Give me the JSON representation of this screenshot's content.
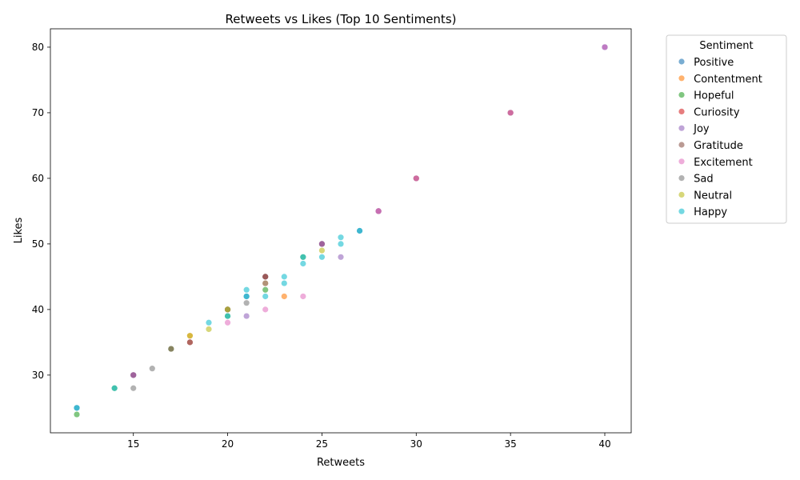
{
  "chart_data": {
    "type": "scatter",
    "title": "Retweets vs Likes (Top 10 Sentiments)",
    "xlabel": "Retweets",
    "ylabel": "Likes",
    "xlim": [
      10.6,
      41.4
    ],
    "ylim": [
      21.2,
      82.8
    ],
    "xticks": [
      15,
      20,
      25,
      30,
      35,
      40
    ],
    "yticks": [
      30,
      40,
      50,
      60,
      70,
      80
    ],
    "grid": false,
    "legend": {
      "title": "Sentiment",
      "placement": "outside-right"
    },
    "series": [
      {
        "name": " Positive ",
        "color": "#1f77b4",
        "points": [
          [
            12,
            25
          ],
          [
            15,
            30
          ],
          [
            20,
            40
          ],
          [
            21,
            42
          ],
          [
            22,
            45
          ],
          [
            25,
            50
          ],
          [
            27,
            52
          ],
          [
            28,
            55
          ],
          [
            30,
            60
          ],
          [
            35,
            70
          ],
          [
            40,
            80
          ]
        ]
      },
      {
        "name": " Contentment ",
        "color": "#ff7f0e",
        "points": [
          [
            18,
            36
          ],
          [
            20,
            40
          ],
          [
            22,
            44
          ],
          [
            23,
            42
          ]
        ]
      },
      {
        "name": " Hopeful ",
        "color": "#2ca02c",
        "points": [
          [
            12,
            24
          ],
          [
            14,
            28
          ],
          [
            17,
            34
          ],
          [
            20,
            39
          ],
          [
            22,
            43
          ],
          [
            24,
            48
          ]
        ]
      },
      {
        "name": " Curiosity ",
        "color": "#d62728",
        "points": [
          [
            15,
            30
          ],
          [
            18,
            35
          ],
          [
            22,
            45
          ],
          [
            25,
            50
          ],
          [
            28,
            55
          ],
          [
            30,
            60
          ],
          [
            35,
            70
          ]
        ]
      },
      {
        "name": " Joy ",
        "color": "#9467bd",
        "points": [
          [
            15,
            30
          ],
          [
            21,
            39
          ],
          [
            25,
            50
          ],
          [
            26,
            48
          ],
          [
            28,
            55
          ],
          [
            40,
            80
          ]
        ]
      },
      {
        "name": " Gratitude ",
        "color": "#8c564b",
        "points": [
          [
            17,
            34
          ],
          [
            18,
            35
          ],
          [
            20,
            40
          ],
          [
            22,
            45
          ]
        ]
      },
      {
        "name": " Excitement ",
        "color": "#e377c2",
        "points": [
          [
            20,
            38
          ],
          [
            22,
            40
          ],
          [
            24,
            42
          ],
          [
            28,
            55
          ],
          [
            30,
            60
          ],
          [
            35,
            70
          ],
          [
            40,
            80
          ]
        ]
      },
      {
        "name": " Sad ",
        "color": "#7f7f7f",
        "points": [
          [
            15,
            28
          ],
          [
            16,
            31
          ],
          [
            20,
            40
          ],
          [
            21,
            41
          ],
          [
            22,
            44
          ]
        ]
      },
      {
        "name": " Neutral ",
        "color": "#bcbd22",
        "points": [
          [
            18,
            36
          ],
          [
            19,
            37
          ],
          [
            20,
            40
          ],
          [
            25,
            49
          ]
        ]
      },
      {
        "name": " Happy ",
        "color": "#17becf",
        "points": [
          [
            12,
            25
          ],
          [
            14,
            28
          ],
          [
            19,
            38
          ],
          [
            20,
            39
          ],
          [
            21,
            42
          ],
          [
            21,
            43
          ],
          [
            22,
            42
          ],
          [
            23,
            44
          ],
          [
            23,
            45
          ],
          [
            24,
            47
          ],
          [
            24,
            48
          ],
          [
            25,
            48
          ],
          [
            26,
            50
          ],
          [
            26,
            51
          ],
          [
            27,
            52
          ]
        ]
      }
    ]
  }
}
